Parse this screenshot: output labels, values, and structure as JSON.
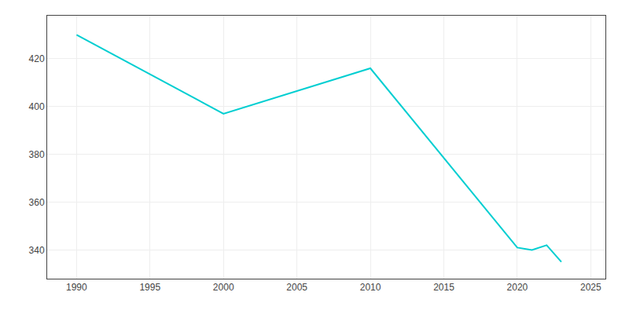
{
  "chart_data": {
    "type": "line",
    "x": [
      1990,
      2000,
      2010,
      2020,
      2021,
      2022,
      2023
    ],
    "values": [
      430,
      397,
      416,
      341,
      340,
      342,
      335
    ],
    "color": "#00CED1",
    "xlim": [
      1988,
      2026
    ],
    "ylim": [
      328,
      438
    ],
    "xticks": [
      1990,
      1995,
      2000,
      2005,
      2010,
      2015,
      2020,
      2025
    ],
    "yticks": [
      340,
      360,
      380,
      400,
      420
    ],
    "grid": true
  }
}
